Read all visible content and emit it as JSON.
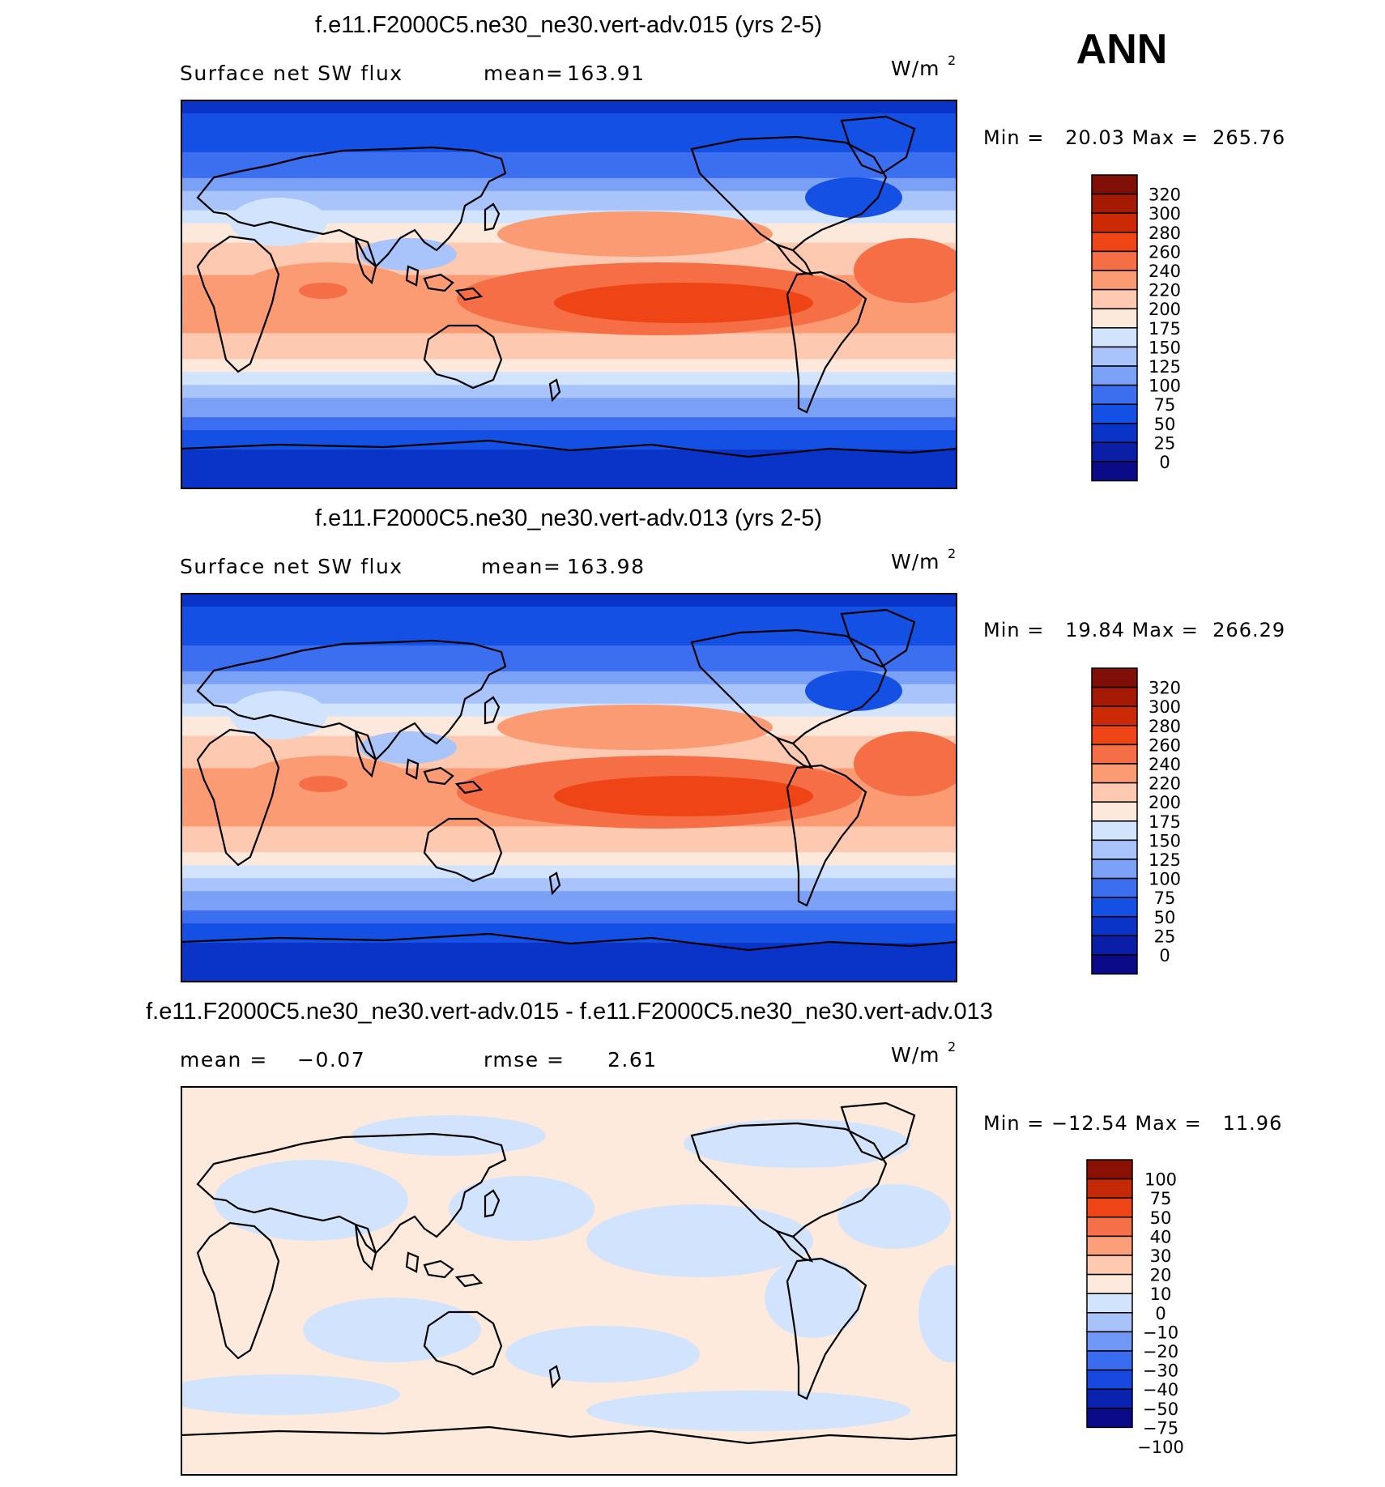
{
  "season_label": "ANN",
  "units_label": "W/m",
  "units_exponent": "2",
  "colors": {
    "abs_levels": [
      "#0b0b8a",
      "#0a1ea8",
      "#0a34c7",
      "#1350e3",
      "#3b6ff0",
      "#7aa1f5",
      "#a9c4fa",
      "#d2e4fd",
      "#fde8dc",
      "#fdc9b0",
      "#fb9b74",
      "#f56e45",
      "#ee4416",
      "#cc2a04",
      "#a51a02",
      "#800f08"
    ],
    "diff_levels": [
      "#0b0b8a",
      "#0a22b0",
      "#1848e0",
      "#3a6cf1",
      "#6f98f6",
      "#a7c3fa",
      "#d2e4fd",
      "#fdeadd",
      "#fdc9b0",
      "#fb9f7a",
      "#f57048",
      "#ee4416",
      "#c42a05",
      "#8b1004"
    ],
    "land_outline": "#000000"
  },
  "panels": [
    {
      "title": "f.e11.F2000C5.ne30_ne30.vert-adv.015 (yrs 2-5)",
      "left_label": "Surface net SW flux",
      "stat1_label": "mean=",
      "stat1_value": "163.91",
      "minmax_text": "Min =   20.03 Max =  265.76"
    },
    {
      "title": "f.e11.F2000C5.ne30_ne30.vert-adv.013 (yrs 2-5)",
      "left_label": "Surface net SW flux",
      "stat1_label": "mean=",
      "stat1_value": "163.98",
      "minmax_text": "Min =   19.84 Max =  266.29"
    },
    {
      "title": "f.e11.F2000C5.ne30_ne30.vert-adv.015 - f.e11.F2000C5.ne30_ne30.vert-adv.013",
      "stat0_label": "mean =",
      "stat0_value": "−0.07",
      "stat1_label": "rmse =",
      "stat1_value": "2.61",
      "minmax_text": "Min = −12.54 Max =   11.96"
    }
  ],
  "chart_data": [
    {
      "type": "heatmap",
      "title": "f.e11.F2000C5.ne30_ne30.vert-adv.015 (yrs 2-5)",
      "variable": "Surface net SW flux",
      "units": "W/m2",
      "mean": 163.91,
      "min": 20.03,
      "max": 265.76,
      "colorbar_ticks": [
        "320",
        "300",
        "280",
        "260",
        "240",
        "220",
        "200",
        "175",
        "150",
        "125",
        "100",
        "75",
        "50",
        "25",
        "0"
      ],
      "zonal_profile": {
        "latitude_deg": [
          90,
          75,
          60,
          45,
          30,
          15,
          0,
          -15,
          -30,
          -45,
          -60,
          -75,
          -90
        ],
        "value": [
          40,
          60,
          85,
          130,
          185,
          215,
          230,
          225,
          200,
          140,
          85,
          45,
          30
        ]
      }
    },
    {
      "type": "heatmap",
      "title": "f.e11.F2000C5.ne30_ne30.vert-adv.013 (yrs 2-5)",
      "variable": "Surface net SW flux",
      "units": "W/m2",
      "mean": 163.98,
      "min": 19.84,
      "max": 266.29,
      "colorbar_ticks": [
        "320",
        "300",
        "280",
        "260",
        "240",
        "220",
        "200",
        "175",
        "150",
        "125",
        "100",
        "75",
        "50",
        "25",
        "0"
      ],
      "zonal_profile": {
        "latitude_deg": [
          90,
          75,
          60,
          45,
          30,
          15,
          0,
          -15,
          -30,
          -45,
          -60,
          -75,
          -90
        ],
        "value": [
          40,
          60,
          85,
          130,
          185,
          215,
          230,
          225,
          200,
          140,
          85,
          45,
          30
        ]
      }
    },
    {
      "type": "heatmap",
      "title": "f.e11.F2000C5.ne30_ne30.vert-adv.015 - f.e11.F2000C5.ne30_ne30.vert-adv.013",
      "units": "W/m2",
      "mean": -0.07,
      "rmse": 2.61,
      "min": -12.54,
      "max": 11.96,
      "colorbar_ticks": [
        "100",
        "75",
        "50",
        "40",
        "30",
        "20",
        "10",
        "0",
        "−10",
        "−20",
        "−30",
        "−40",
        "−50",
        "−75",
        "−100"
      ]
    }
  ]
}
